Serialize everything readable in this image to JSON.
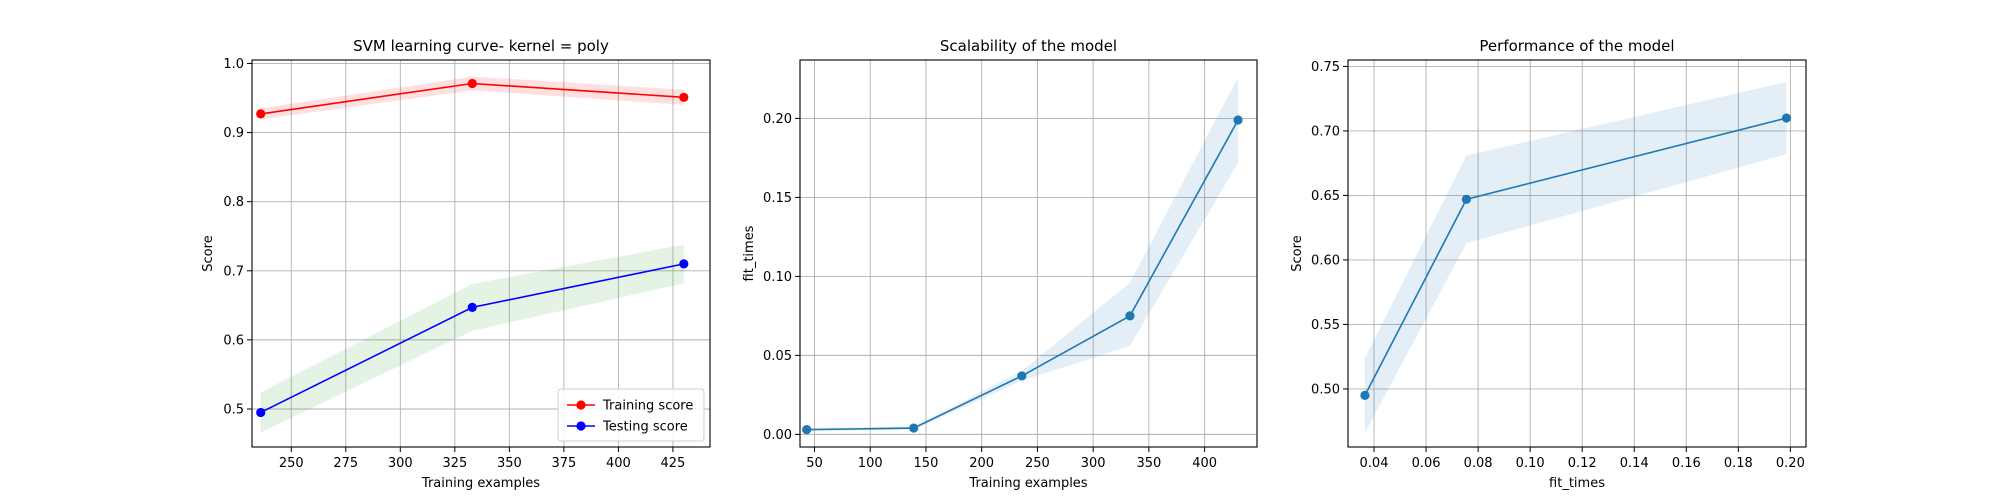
{
  "chart_data": [
    {
      "type": "line",
      "title": "SVM learning curve- kernel = poly",
      "xlabel": "Training examples",
      "ylabel": "Score",
      "xlim": [
        232,
        442
      ],
      "ylim": [
        0.445,
        1.005
      ],
      "xticks": [
        250,
        275,
        300,
        325,
        350,
        375,
        400,
        425
      ],
      "yticks": [
        0.5,
        0.6,
        0.7,
        0.8,
        0.9,
        1.0
      ],
      "ytick_labels": [
        "0.5",
        "0.6",
        "0.7",
        "0.8",
        "0.9",
        "1.0"
      ],
      "grid": true,
      "legend": "lower right",
      "x": [
        236,
        333,
        430
      ],
      "series": [
        {
          "name": "Training score",
          "color": "#ff0000",
          "band_color": "#ff0000",
          "values": [
            0.927,
            0.971,
            0.951
          ],
          "upper": [
            0.935,
            0.981,
            0.962
          ],
          "lower": [
            0.919,
            0.961,
            0.94
          ]
        },
        {
          "name": "Testing score",
          "color": "#0000ff",
          "band_color": "#2ca02c",
          "values": [
            0.495,
            0.647,
            0.71
          ],
          "upper": [
            0.524,
            0.681,
            0.738
          ],
          "lower": [
            0.466,
            0.613,
            0.682
          ]
        }
      ]
    },
    {
      "type": "line",
      "title": "Scalability of the model",
      "xlabel": "Training examples",
      "ylabel": "fit_times",
      "xlim": [
        37,
        447
      ],
      "ylim": [
        -0.008,
        0.237
      ],
      "xticks": [
        50,
        100,
        150,
        200,
        250,
        300,
        350,
        400
      ],
      "yticks": [
        0.0,
        0.05,
        0.1,
        0.15,
        0.2
      ],
      "ytick_labels": [
        "0.00",
        "0.05",
        "0.10",
        "0.15",
        "0.20"
      ],
      "grid": true,
      "x": [
        43,
        139,
        236,
        333,
        430
      ],
      "series": [
        {
          "color": "#1f77b4",
          "band_color": "#1f77b4",
          "values": [
            0.003,
            0.004,
            0.037,
            0.075,
            0.199
          ],
          "upper": [
            0.004,
            0.005,
            0.04,
            0.096,
            0.226
          ],
          "lower": [
            0.002,
            0.003,
            0.034,
            0.056,
            0.172
          ]
        }
      ]
    },
    {
      "type": "line",
      "title": "Performance of the model",
      "xlabel": "fit_times",
      "ylabel": "Score",
      "xlim": [
        0.03,
        0.206
      ],
      "ylim": [
        0.455,
        0.755
      ],
      "xticks": [
        0.04,
        0.06,
        0.08,
        0.1,
        0.12,
        0.14,
        0.16,
        0.18,
        0.2
      ],
      "xtick_labels": [
        "0.04",
        "0.06",
        "0.08",
        "0.10",
        "0.12",
        "0.14",
        "0.16",
        "0.18",
        "0.20"
      ],
      "yticks": [
        0.5,
        0.55,
        0.6,
        0.65,
        0.7,
        0.75
      ],
      "ytick_labels": [
        "0.50",
        "0.55",
        "0.60",
        "0.65",
        "0.70",
        "0.75"
      ],
      "grid": true,
      "x": [
        0.0365,
        0.0755,
        0.1985
      ],
      "series": [
        {
          "color": "#1f77b4",
          "band_color": "#1f77b4",
          "values": [
            0.495,
            0.647,
            0.71
          ],
          "upper": [
            0.524,
            0.681,
            0.738
          ],
          "lower": [
            0.466,
            0.613,
            0.682
          ]
        }
      ]
    }
  ]
}
